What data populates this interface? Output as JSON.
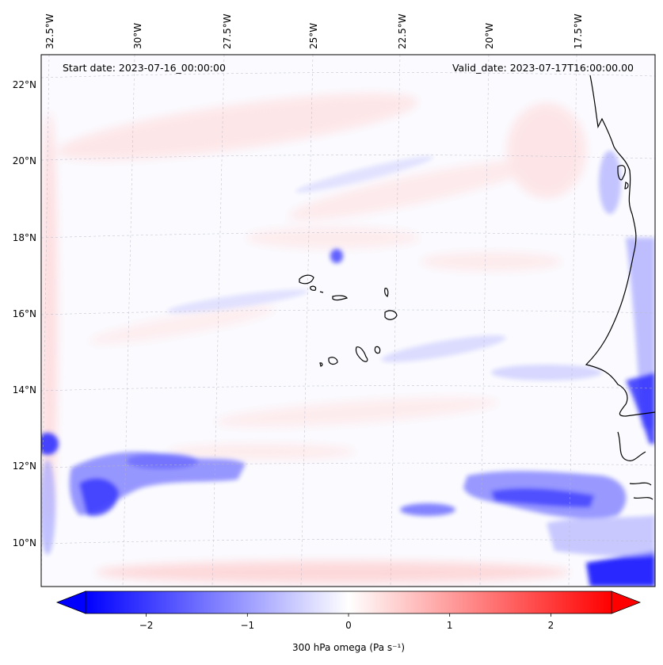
{
  "header": {
    "start_date": "Start date: 2023-07-16_00:00:00",
    "valid_date": "Valid_date: 2023-07-17T16:00:00.00"
  },
  "longitude_labels": [
    "32.5°W",
    "30°W",
    "27.5°W",
    "25°W",
    "22.5°W",
    "20°W",
    "17.5°W"
  ],
  "latitude_labels": [
    "22°N",
    "20°N",
    "18°N",
    "16°N",
    "14°N",
    "12°N",
    "10°N"
  ],
  "colorbar": {
    "label": "300 hPa omega (Pa s⁻¹)",
    "ticks": [
      "−2",
      "−1",
      "0",
      "1",
      "2"
    ],
    "range": [
      -2.6,
      2.6
    ],
    "tick_values": [
      -2,
      -1,
      0,
      1,
      2
    ],
    "colormap": "bwr",
    "extend": "both"
  },
  "colors": {
    "negative": "#0000ff",
    "positive": "#ff0000",
    "neutral": "#ffffff"
  }
}
